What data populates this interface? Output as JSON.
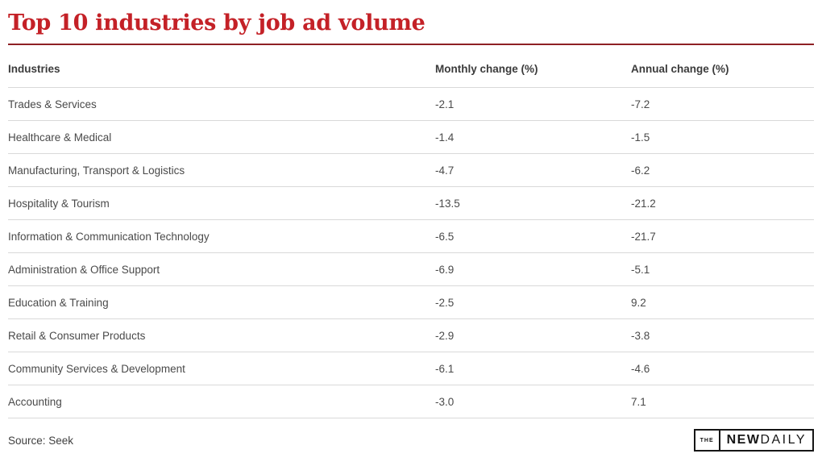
{
  "title": "Top 10 industries by job ad volume",
  "colors": {
    "title_red": "#c42127",
    "rule_red": "#8e2024",
    "separator_gray": "#d9d9d9",
    "header_text": "#3b3b3b",
    "body_text": "#4a4a4a",
    "logo_black": "#161616"
  },
  "table": {
    "headers": [
      "Industries",
      "Monthly change (%)",
      "Annual change (%)"
    ],
    "rows": [
      {
        "industry": "Trades & Services",
        "monthly": "-2.1",
        "annual": "-7.2"
      },
      {
        "industry": "Healthcare & Medical",
        "monthly": "-1.4",
        "annual": "-1.5"
      },
      {
        "industry": "Manufacturing, Transport & Logistics",
        "monthly": "-4.7",
        "annual": "-6.2"
      },
      {
        "industry": "Hospitality & Tourism",
        "monthly": "-13.5",
        "annual": "-21.2"
      },
      {
        "industry": "Information & Communication Technology",
        "monthly": "-6.5",
        "annual": "-21.7"
      },
      {
        "industry": "Administration & Office Support",
        "monthly": "-6.9",
        "annual": "-5.1"
      },
      {
        "industry": "Education & Training",
        "monthly": "-2.5",
        "annual": "9.2"
      },
      {
        "industry": "Retail & Consumer Products",
        "monthly": "-2.9",
        "annual": "-3.8"
      },
      {
        "industry": "Community Services & Development",
        "monthly": "-6.1",
        "annual": "-4.6"
      },
      {
        "industry": "Accounting",
        "monthly": "-3.0",
        "annual": "7.1"
      }
    ]
  },
  "source": "Source: Seek",
  "logo": {
    "the": "THE",
    "new": "NEW",
    "daily": "DAILY"
  },
  "chart_data": {
    "type": "table",
    "title": "Top 10 industries by job ad volume",
    "columns": [
      "Industries",
      "Monthly change (%)",
      "Annual change (%)"
    ],
    "categories": [
      "Trades & Services",
      "Healthcare & Medical",
      "Manufacturing, Transport & Logistics",
      "Hospitality & Tourism",
      "Information & Communication Technology",
      "Administration & Office Support",
      "Education & Training",
      "Retail & Consumer Products",
      "Community Services & Development",
      "Accounting"
    ],
    "series": [
      {
        "name": "Monthly change (%)",
        "values": [
          -2.1,
          -1.4,
          -4.7,
          -13.5,
          -6.5,
          -6.9,
          -2.5,
          -2.9,
          -6.1,
          -3.0
        ]
      },
      {
        "name": "Annual change (%)",
        "values": [
          -7.2,
          -1.5,
          -6.2,
          -21.2,
          -21.7,
          -5.1,
          9.2,
          -3.8,
          -4.6,
          7.1
        ]
      }
    ],
    "source": "Seek",
    "publisher": "The New Daily"
  }
}
